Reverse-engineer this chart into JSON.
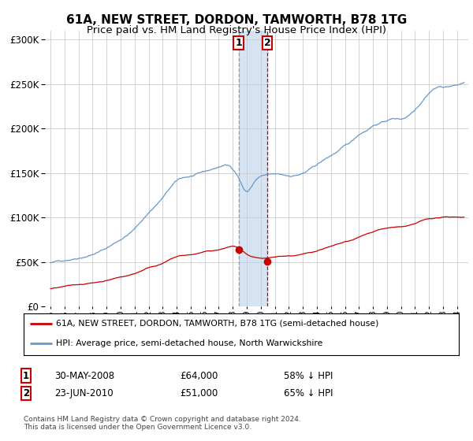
{
  "title": "61A, NEW STREET, DORDON, TAMWORTH, B78 1TG",
  "subtitle": "Price paid vs. HM Land Registry's House Price Index (HPI)",
  "legend_line1": "61A, NEW STREET, DORDON, TAMWORTH, B78 1TG (semi-detached house)",
  "legend_line2": "HPI: Average price, semi-detached house, North Warwickshire",
  "footer": "Contains HM Land Registry data © Crown copyright and database right 2024.\nThis data is licensed under the Open Government Licence v3.0.",
  "sale1_date": "30-MAY-2008",
  "sale1_price": 64000,
  "sale1_hpi": "58% ↓ HPI",
  "sale2_date": "23-JUN-2010",
  "sale2_price": 51000,
  "sale2_hpi": "65% ↓ HPI",
  "sale1_x": 2008.41,
  "sale2_x": 2010.47,
  "hpi_color": "#6699cc",
  "price_color": "#cc0000",
  "background_color": "#ffffff",
  "grid_color": "#cccccc",
  "shade_color": "#ccddef",
  "ylim": [
    0,
    310000
  ],
  "xlim_start": 1994.6,
  "xlim_end": 2024.8,
  "title_fontsize": 11,
  "subtitle_fontsize": 9.5
}
